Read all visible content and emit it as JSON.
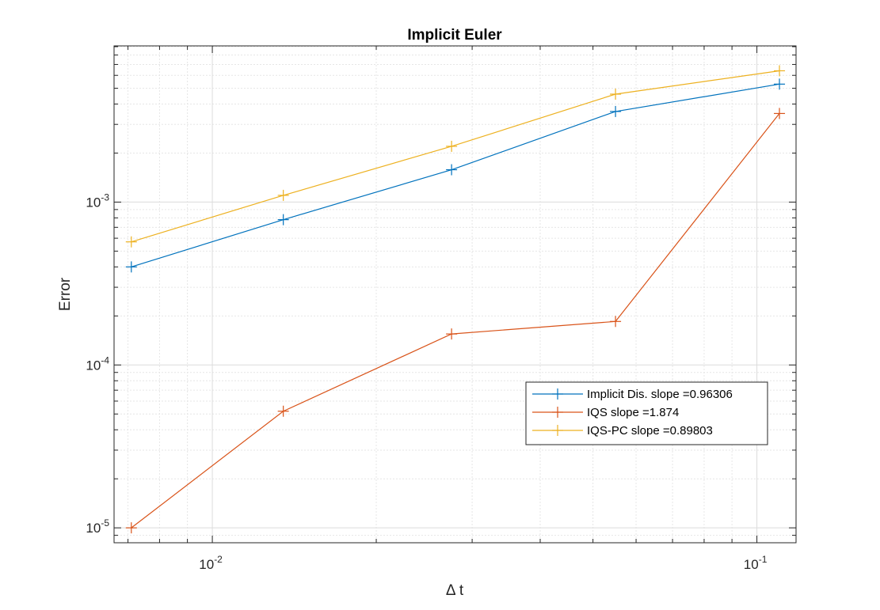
{
  "chart_data": {
    "type": "line",
    "title": "Implicit Euler",
    "xlabel": "Δ t",
    "ylabel": "Error",
    "xscale": "log",
    "yscale": "log",
    "xlim": [
      0.0066,
      0.118
    ],
    "ylim": [
      8.1e-06,
      0.0091
    ],
    "grid": true,
    "minor_grid": true,
    "x_ticks": [
      {
        "value": 0.01,
        "base": "10",
        "exp": "-2"
      },
      {
        "value": 0.1,
        "base": "10",
        "exp": "-1"
      }
    ],
    "y_ticks": [
      {
        "value": 1e-05,
        "base": "10",
        "exp": "-5"
      },
      {
        "value": 0.0001,
        "base": "10",
        "exp": "-4"
      },
      {
        "value": 0.001,
        "base": "10",
        "exp": "-3"
      }
    ],
    "x": [
      0.0071,
      0.0135,
      0.0275,
      0.055,
      0.11
    ],
    "series": [
      {
        "name": "Implicit Dis. slope =0.96306",
        "color": "#0072BD",
        "values": [
          0.0004,
          0.00078,
          0.00158,
          0.0036,
          0.0053
        ]
      },
      {
        "name": "IQS slope =1.874",
        "color": "#D95319",
        "values": [
          1e-05,
          5.2e-05,
          0.000155,
          0.000185,
          0.0035
        ]
      },
      {
        "name": "IQS-PC slope =0.89803",
        "color": "#EDB120",
        "values": [
          0.00057,
          0.0011,
          0.0022,
          0.0046,
          0.0064
        ]
      }
    ],
    "legend_position": "lower-right",
    "marker": "plus"
  }
}
